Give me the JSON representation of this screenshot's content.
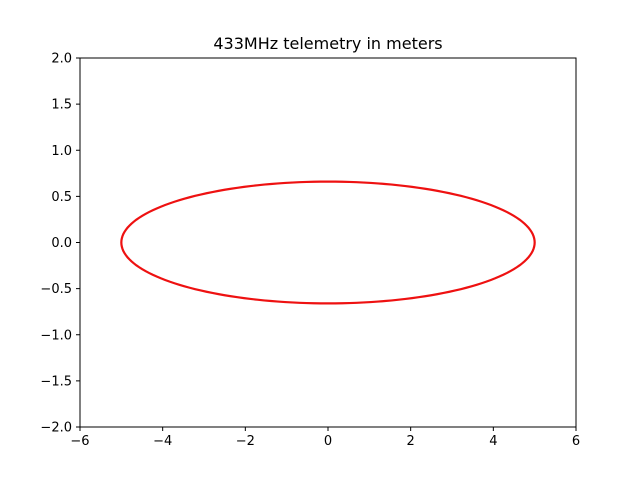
{
  "chart_data": {
    "type": "line",
    "title": "433MHz telemetry in meters",
    "xlabel": "",
    "ylabel": "",
    "xlim": [
      -6,
      6
    ],
    "ylim": [
      -2,
      2
    ],
    "x_ticks": [
      -6,
      -4,
      -2,
      0,
      2,
      4,
      6
    ],
    "y_ticks": [
      -2.0,
      -1.5,
      -1.0,
      -0.5,
      0.0,
      0.5,
      1.0,
      1.5,
      2.0
    ],
    "x_tick_labels": [
      "−6",
      "−4",
      "−2",
      "0",
      "2",
      "4",
      "6"
    ],
    "y_tick_labels": [
      "−2.0",
      "−1.5",
      "−1.0",
      "−0.5",
      "0.0",
      "0.5",
      "1.0",
      "1.5",
      "2.0"
    ],
    "grid": false,
    "legend": "none",
    "series": [
      {
        "shape": "ellipse",
        "color": "#ee1111",
        "center": [
          0,
          0
        ],
        "semi_axis_x": 5.0,
        "semi_axis_y": 0.66,
        "x": [
          5.0,
          4.755,
          4.045,
          2.939,
          1.545,
          0.0,
          -1.545,
          -2.939,
          -4.045,
          -4.755,
          -5.0,
          -4.755,
          -4.045,
          -2.939,
          -1.545,
          0.0,
          1.545,
          2.939,
          4.045,
          4.755,
          5.0
        ],
        "y": [
          0.0,
          0.204,
          0.388,
          0.534,
          0.628,
          0.66,
          0.628,
          0.534,
          0.388,
          0.204,
          0.0,
          -0.204,
          -0.388,
          -0.534,
          -0.628,
          -0.66,
          -0.628,
          -0.534,
          -0.388,
          -0.204,
          0.0
        ]
      }
    ]
  }
}
